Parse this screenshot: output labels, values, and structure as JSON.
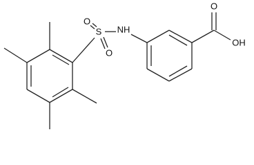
{
  "atoms": [
    {
      "label": "S"
    },
    {
      "label": "O"
    },
    {
      "label": "O"
    },
    {
      "label": "NH"
    },
    {
      "label": "O"
    },
    {
      "label": "OH"
    }
  ]
}
